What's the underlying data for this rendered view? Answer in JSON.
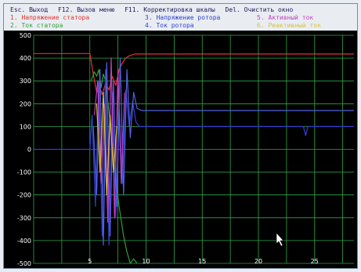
{
  "menu": {
    "items": [
      {
        "key": "Esc.",
        "label": "Выход"
      },
      {
        "key": "F12.",
        "label": "Вызов меню"
      },
      {
        "key": "F11.",
        "label": "Корректировка шкалы"
      },
      {
        "key": "Del.",
        "label": "Очистить окно"
      }
    ]
  },
  "legend": [
    {
      "label": "1. Напряжение статора",
      "color": "#e83030"
    },
    {
      "label": "3. Напряжение ротора",
      "color": "#3040d0"
    },
    {
      "label": "5. Активный ток",
      "color": "#c040c0"
    },
    {
      "label": "2. Ток статора",
      "color": "#30a030"
    },
    {
      "label": "4. Ток ротора",
      "color": "#3040d0"
    },
    {
      "label": "6. Реактивный ток",
      "color": "#d8c040"
    }
  ],
  "chart_data": {
    "type": "line",
    "xlabel": "",
    "ylabel": "",
    "xlim": [
      0,
      28.5
    ],
    "ylim": [
      -500,
      500
    ],
    "xticks": [
      5,
      10,
      15,
      20,
      25
    ],
    "yticks": [
      500,
      400,
      300,
      200,
      100,
      0,
      -100,
      -200,
      -300,
      -400,
      -500
    ],
    "grid": true,
    "background": "#000000",
    "grid_color": "#2fa84a",
    "series": [
      {
        "name": "1. Напряжение статора",
        "color": "#e83030",
        "x": [
          0,
          5,
          5.3,
          5.6,
          5.9,
          6.1,
          6.4,
          6.7,
          7.0,
          7.3,
          7.6,
          7.9,
          8.2,
          8.5,
          9,
          10,
          15,
          20,
          25,
          28.5
        ],
        "y": [
          420,
          420,
          330,
          250,
          270,
          240,
          290,
          260,
          320,
          280,
          350,
          380,
          400,
          410,
          418,
          418,
          418,
          418,
          418,
          418
        ]
      },
      {
        "name": "2. Ток статора",
        "color": "#30a030",
        "x": [
          5.1,
          5.4,
          5.6,
          5.8,
          6.0,
          6.2,
          6.4,
          6.8,
          7.2,
          7.6,
          8.0,
          8.3,
          8.6,
          8.9,
          9.2
        ],
        "y": [
          300,
          340,
          320,
          350,
          270,
          330,
          300,
          120,
          -80,
          -250,
          -380,
          -450,
          -500,
          -480,
          -500
        ]
      },
      {
        "name": "3. Напряжение ротора",
        "color": "#3040d0",
        "x": [
          0,
          5,
          5.2,
          5.5,
          5.8,
          6.1,
          6.4,
          6.7,
          7.0,
          7.3,
          7.6,
          7.9,
          8.2,
          8.5,
          8.8,
          9.1,
          9.4,
          10,
          15,
          20,
          24,
          24.2,
          24.4,
          25,
          28.5
        ],
        "y": [
          0,
          0,
          150,
          -250,
          300,
          -380,
          350,
          -420,
          250,
          -300,
          200,
          -150,
          260,
          100,
          210,
          120,
          100,
          100,
          100,
          100,
          100,
          60,
          100,
          100,
          100
        ]
      },
      {
        "name": "4. Ток ротора",
        "color": "#5060e0",
        "x": [
          5.3,
          5.6,
          5.9,
          6.2,
          6.5,
          6.8,
          7.1,
          7.4,
          7.7,
          8.0,
          8.3,
          8.6,
          8.9,
          9.2,
          9.6,
          10.5,
          15,
          20,
          25,
          28.5
        ],
        "y": [
          100,
          -200,
          350,
          -420,
          380,
          -380,
          300,
          -250,
          400,
          -200,
          350,
          50,
          250,
          180,
          170,
          170,
          170,
          170,
          170,
          170
        ]
      },
      {
        "name": "5. Активный ток",
        "color": "#c040c0",
        "x": [
          5.4,
          5.7,
          6.0,
          6.3,
          6.6,
          6.9,
          7.2,
          7.5,
          7.8,
          8.1
        ],
        "y": [
          150,
          300,
          -150,
          200,
          -320,
          400,
          -300,
          350,
          -150,
          250
        ]
      },
      {
        "name": "6. Реактивный ток",
        "color": "#d8c040",
        "x": [
          5.6,
          5.9,
          6.2,
          6.5,
          6.8,
          7.1,
          7.4
        ],
        "y": [
          200,
          -100,
          250,
          -200,
          150,
          -100,
          100
        ]
      }
    ]
  }
}
